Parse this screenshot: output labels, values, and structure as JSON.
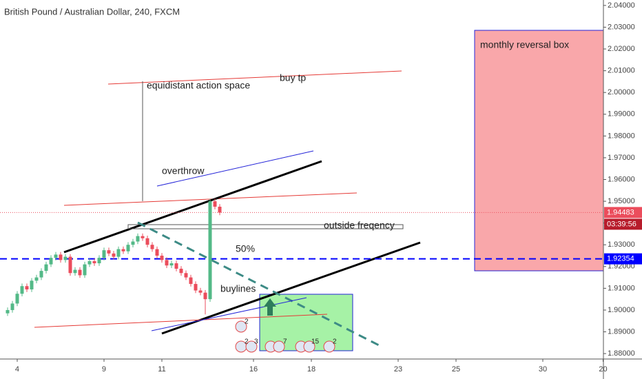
{
  "chart_data": {
    "type": "candlestick",
    "title": "British Pound / Australian Dollar, 240, FXCM",
    "x": [
      -2,
      -1,
      0,
      1,
      2,
      3,
      4,
      5,
      6,
      7,
      8,
      9,
      10,
      11,
      12,
      13,
      14,
      15,
      16,
      17,
      18,
      19,
      20,
      21,
      22,
      23,
      24,
      25,
      26,
      27,
      28,
      29,
      30,
      31,
      32,
      33,
      34,
      35,
      36,
      37,
      38,
      39,
      40,
      41,
      42
    ],
    "open": [
      1.8985,
      1.9,
      1.903,
      1.9075,
      1.911,
      1.9095,
      1.9135,
      1.915,
      1.918,
      1.921,
      1.924,
      1.9255,
      1.923,
      1.9245,
      1.917,
      1.9185,
      1.916,
      1.921,
      1.9225,
      1.9215,
      1.924,
      1.9275,
      1.926,
      1.9245,
      1.928,
      1.927,
      1.93,
      1.9315,
      1.934,
      1.933,
      1.93,
      1.928,
      1.925,
      1.923,
      1.9205,
      1.9215,
      1.919,
      1.917,
      1.915,
      1.912,
      1.909,
      1.908,
      1.905,
      1.95,
      1.9475
    ],
    "high": [
      1.9012,
      1.9042,
      1.9087,
      1.9122,
      1.9122,
      1.9147,
      1.9162,
      1.9192,
      1.9222,
      1.9252,
      1.9267,
      1.9267,
      1.9257,
      1.9257,
      1.9197,
      1.9197,
      1.9222,
      1.9237,
      1.9237,
      1.9252,
      1.9287,
      1.9287,
      1.9272,
      1.9292,
      1.9292,
      1.9312,
      1.9327,
      1.9352,
      1.9352,
      1.9342,
      1.9312,
      1.9292,
      1.9262,
      1.9242,
      1.9227,
      1.9227,
      1.9202,
      1.9182,
      1.9162,
      1.9132,
      1.9102,
      1.9092,
      1.951,
      1.9512,
      1.9487
    ],
    "low": [
      1.8973,
      1.8988,
      1.9018,
      1.9063,
      1.9083,
      1.9083,
      1.9123,
      1.9138,
      1.9168,
      1.9198,
      1.9228,
      1.9218,
      1.9218,
      1.9158,
      1.9158,
      1.9148,
      1.9148,
      1.9198,
      1.9203,
      1.9203,
      1.9228,
      1.9248,
      1.9233,
      1.9233,
      1.9258,
      1.9258,
      1.9288,
      1.9303,
      1.9318,
      1.9288,
      1.9268,
      1.9238,
      1.9218,
      1.9193,
      1.9193,
      1.9178,
      1.9158,
      1.9138,
      1.9108,
      1.9078,
      1.9068,
      1.898,
      1.9038,
      1.9463,
      1.9436
    ],
    "close": [
      1.9,
      1.903,
      1.9075,
      1.911,
      1.9095,
      1.9135,
      1.915,
      1.918,
      1.921,
      1.924,
      1.9255,
      1.923,
      1.9245,
      1.917,
      1.9185,
      1.916,
      1.921,
      1.9225,
      1.9215,
      1.924,
      1.9275,
      1.926,
      1.9245,
      1.928,
      1.927,
      1.93,
      1.9315,
      1.934,
      1.933,
      1.93,
      1.928,
      1.925,
      1.923,
      1.9205,
      1.9215,
      1.919,
      1.917,
      1.915,
      1.912,
      1.909,
      1.908,
      1.905,
      1.95,
      1.9475,
      1.9448
    ],
    "up_color": "#53b987",
    "down_color": "#eb4d5c",
    "xlim": [
      -3.57,
      121.57
    ],
    "xticks": [
      {
        "value": 0,
        "label": "4"
      },
      {
        "value": 18,
        "label": "9"
      },
      {
        "value": 30,
        "label": "11"
      },
      {
        "value": 49,
        "label": "16"
      },
      {
        "value": 61,
        "label": "18"
      },
      {
        "value": 79,
        "label": "23"
      },
      {
        "value": 91,
        "label": "25"
      },
      {
        "value": 109,
        "label": "30"
      },
      {
        "value": 121.5,
        "label": "20"
      }
    ],
    "ylim": [
      1.8775,
      2.0425
    ],
    "yticks": [
      {
        "value": 1.88,
        "label": "1.88000"
      },
      {
        "value": 1.89,
        "label": "1.89000"
      },
      {
        "value": 1.9,
        "label": "1.90000"
      },
      {
        "value": 1.91,
        "label": "1.91000"
      },
      {
        "value": 1.92,
        "label": "1.92000"
      },
      {
        "value": 1.93,
        "label": "1.93000"
      },
      {
        "value": 1.94,
        "label": "1.94000"
      },
      {
        "value": 1.95,
        "label": "1.95000"
      },
      {
        "value": 1.96,
        "label": "1.96000"
      },
      {
        "value": 1.97,
        "label": "1.97000"
      },
      {
        "value": 1.98,
        "label": "1.98000"
      },
      {
        "value": 1.99,
        "label": "1.99000"
      },
      {
        "value": 2.0,
        "label": "2.00000"
      },
      {
        "value": 2.01,
        "label": "2.01000"
      },
      {
        "value": 2.02,
        "label": "2.02000"
      },
      {
        "value": 2.03,
        "label": "2.03000"
      },
      {
        "value": 2.04,
        "label": "2.04000"
      }
    ],
    "last_price": 1.94483,
    "last_price_color": "#eb4d5c",
    "countdown": "03:39:56",
    "reference_price": 1.92354,
    "reference_color": "#0000ff",
    "annotations": [
      "equidistant action space",
      "buy tp",
      "overthrow",
      "outside freqency",
      "50%",
      "buylines",
      "monthly reversal box"
    ],
    "event_counts": [
      2,
      2,
      3,
      7,
      15,
      2
    ]
  }
}
